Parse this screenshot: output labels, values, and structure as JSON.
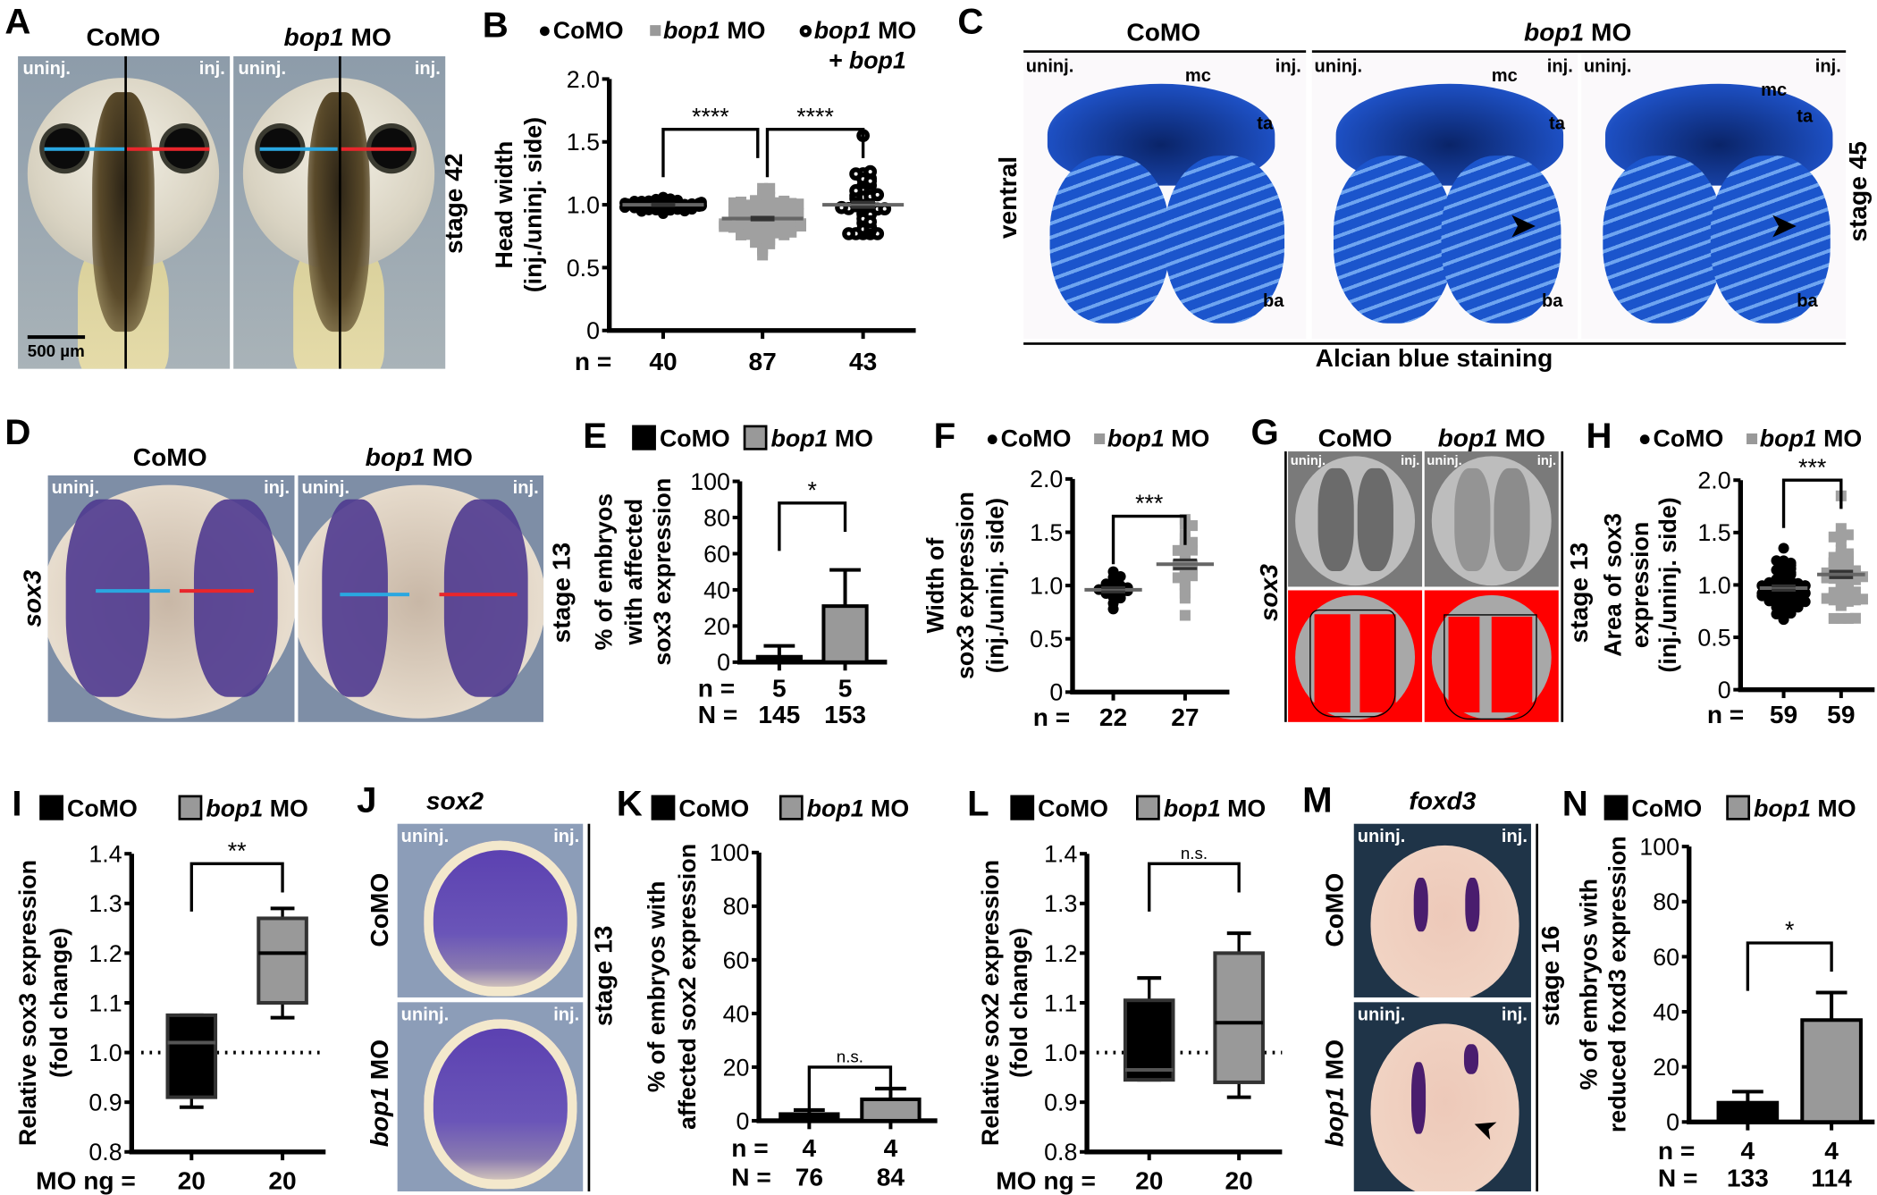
{
  "figure": {
    "A": {
      "letter": "A",
      "title_como": "CoMO",
      "title_bop1_italic": "bop1",
      "title_bop1_rest": " MO",
      "uninj": "uninj.",
      "inj": "inj.",
      "stage": "stage 42",
      "scale_bar": "500 µm",
      "colors": {
        "uninj_line": "#2aa7e0",
        "inj_line": "#e8262c"
      }
    },
    "C": {
      "letter": "C",
      "title_como": "CoMO",
      "title_bop1_italic": "bop1",
      "title_bop1_rest": " MO",
      "uninj": "uninj.",
      "inj": "inj.",
      "view": "ventral",
      "stage": "stage 45",
      "caption": "Alcian blue staining",
      "mc": "mc",
      "ta": "ta",
      "ba": "ba"
    },
    "D": {
      "letter": "D",
      "title_como": "CoMO",
      "title_bop1_italic": "bop1",
      "title_bop1_rest": " MO",
      "uninj": "uninj.",
      "inj": "inj.",
      "gene": "sox3",
      "stage": "stage 13"
    },
    "G": {
      "letter": "G",
      "title_como": "CoMO",
      "title_bop1_italic": "bop1",
      "title_bop1_rest": " MO",
      "uninj": "uninj.",
      "inj": "inj.",
      "gene": "sox3",
      "stage": "stage 13"
    },
    "J": {
      "letter": "J",
      "gene": "sox2",
      "row_como": "CoMO",
      "row_bop1_italic": "bop1",
      "row_bop1_rest": " MO",
      "uninj": "uninj.",
      "inj": "inj.",
      "stage": "stage 13"
    },
    "M": {
      "letter": "M",
      "gene": "foxd3",
      "row_como": "CoMO",
      "row_bop1_italic": "bop1",
      "row_bop1_rest": " MO",
      "uninj": "uninj.",
      "inj": "inj.",
      "stage": "stage 16"
    }
  },
  "chart_data": [
    {
      "letter": "B",
      "type": "scatter",
      "legend": [
        {
          "italic": "",
          "text": "CoMO",
          "marker": "circle"
        },
        {
          "italic": "bop1",
          "text": " MO",
          "marker": "square"
        },
        {
          "italic": "bop1",
          "text": " MO",
          "line2": "+ bop1",
          "marker": "ring"
        }
      ],
      "ylabel": [
        "Head width",
        "(inj./uninj. side)"
      ],
      "yticks": [
        "0",
        "0.5",
        "1.0",
        "1.5",
        "2.0"
      ],
      "ylim": [
        0,
        2
      ],
      "groups": [
        {
          "name": "CoMO",
          "n": 40,
          "mean": 1.0,
          "sem": 0.005,
          "min": 0.93,
          "max": 1.06,
          "marker": "circle"
        },
        {
          "name": "bop1 MO",
          "n": 87,
          "mean": 0.89,
          "sem": 0.01,
          "min": 0.6,
          "max": 1.13,
          "marker": "square"
        },
        {
          "name": "bop1 MO + bop1",
          "n": 43,
          "mean": 1.0,
          "sem": 0.02,
          "min": 0.77,
          "max": 1.55,
          "marker": "ring"
        }
      ],
      "counts": [
        {
          "label": "n =",
          "values": [
            "40",
            "87",
            "43"
          ]
        }
      ],
      "significance": [
        {
          "from": 0,
          "to": 1,
          "y": 1.6,
          "label": "****"
        },
        {
          "from": 1,
          "to": 2,
          "y": 1.6,
          "label": "****"
        }
      ]
    },
    {
      "letter": "E",
      "type": "bar",
      "legend": [
        {
          "italic": "",
          "text": "CoMO",
          "marker": "black-box"
        },
        {
          "italic": "bop1",
          "text": " MO",
          "marker": "grey-box"
        }
      ],
      "ylabel": [
        "% of embryos",
        "with affected",
        "sox3 expression"
      ],
      "yticks": [
        "0",
        "20",
        "40",
        "60",
        "80",
        "100"
      ],
      "ylim": [
        0,
        100
      ],
      "groups": [
        {
          "name": "CoMO",
          "value": 3,
          "error": 6
        },
        {
          "name": "bop1 MO",
          "value": 31,
          "error": 20
        }
      ],
      "counts": [
        {
          "label": "n =",
          "values": [
            "5",
            "5"
          ]
        },
        {
          "label": "N =",
          "values": [
            "145",
            "153"
          ]
        }
      ],
      "significance": [
        {
          "from": 0,
          "to": 1,
          "y": 88,
          "label": "*"
        }
      ]
    },
    {
      "letter": "F",
      "type": "scatter",
      "legend": [
        {
          "italic": "",
          "text": "CoMO",
          "marker": "circle"
        },
        {
          "italic": "bop1",
          "text": " MO",
          "marker": "square"
        }
      ],
      "ylabel": [
        "Width of",
        "sox3 expression",
        "(inj./uninj. side)"
      ],
      "yticks": [
        "0",
        "0.5",
        "1.0",
        "1.5",
        "2.0"
      ],
      "ylim": [
        0,
        2
      ],
      "groups": [
        {
          "name": "CoMO",
          "n": 22,
          "mean": 0.96,
          "sem": 0.02,
          "min": 0.78,
          "max": 1.13,
          "marker": "circle"
        },
        {
          "name": "bop1 MO",
          "n": 27,
          "mean": 1.2,
          "sem": 0.04,
          "min": 0.72,
          "max": 1.62,
          "marker": "square"
        }
      ],
      "counts": [
        {
          "label": "n =",
          "values": [
            "22",
            "27"
          ]
        }
      ],
      "significance": [
        {
          "from": 0,
          "to": 1,
          "y": 1.65,
          "label": "***"
        }
      ]
    },
    {
      "letter": "H",
      "type": "scatter",
      "legend": [
        {
          "italic": "",
          "text": "CoMO",
          "marker": "circle"
        },
        {
          "italic": "bop1",
          "text": " MO",
          "marker": "square"
        }
      ],
      "ylabel": [
        "Area of sox3",
        "expression",
        "(inj./uninj. side)"
      ],
      "yticks": [
        "0",
        "0.5",
        "1.0",
        "1.5",
        "2.0"
      ],
      "ylim": [
        0,
        2
      ],
      "groups": [
        {
          "name": "CoMO",
          "n": 59,
          "mean": 0.97,
          "sem": 0.02,
          "min": 0.67,
          "max": 1.35,
          "marker": "circle"
        },
        {
          "name": "bop1 MO",
          "n": 59,
          "mean": 1.1,
          "sem": 0.03,
          "min": 0.68,
          "max": 1.85,
          "marker": "square"
        }
      ],
      "counts": [
        {
          "label": "n =",
          "values": [
            "59",
            "59"
          ]
        }
      ],
      "significance": [
        {
          "from": 0,
          "to": 1,
          "y": 2.0,
          "label": "***"
        }
      ]
    },
    {
      "letter": "I",
      "type": "box",
      "legend": [
        {
          "italic": "",
          "text": "CoMO",
          "marker": "black-box"
        },
        {
          "italic": "bop1",
          "text": " MO",
          "marker": "grey-box"
        }
      ],
      "ylabel": [
        "Relative sox3 expression",
        "(fold change)"
      ],
      "yticks": [
        "0.8",
        "0.9",
        "1.0",
        "1.1",
        "1.2",
        "1.3",
        "1.4"
      ],
      "ylim": [
        0.8,
        1.4
      ],
      "reference_line": 1.0,
      "groups": [
        {
          "name": "CoMO",
          "min": 0.89,
          "q1": 0.91,
          "median": 1.02,
          "q3": 1.075,
          "max": 1.075
        },
        {
          "name": "bop1 MO",
          "min": 1.07,
          "q1": 1.1,
          "median": 1.2,
          "q3": 1.27,
          "max": 1.29
        }
      ],
      "counts": [
        {
          "label": "MO ng =",
          "values": [
            "20",
            "20"
          ]
        }
      ],
      "significance": [
        {
          "from": 0,
          "to": 1,
          "y": 1.38,
          "label": "**"
        }
      ]
    },
    {
      "letter": "K",
      "type": "bar",
      "legend": [
        {
          "italic": "",
          "text": "CoMO",
          "marker": "black-box"
        },
        {
          "italic": "bop1",
          "text": " MO",
          "marker": "grey-box"
        }
      ],
      "ylabel": [
        "% of embryos with",
        "affected sox2 expression"
      ],
      "yticks": [
        "0",
        "20",
        "40",
        "60",
        "80",
        "100"
      ],
      "ylim": [
        0,
        100
      ],
      "groups": [
        {
          "name": "CoMO",
          "value": 2.5,
          "error": 1.5
        },
        {
          "name": "bop1 MO",
          "value": 8,
          "error": 4
        }
      ],
      "counts": [
        {
          "label": "n =",
          "values": [
            "4",
            "4"
          ]
        },
        {
          "label": "N =",
          "values": [
            "76",
            "84"
          ]
        }
      ],
      "significance": [
        {
          "from": 0,
          "to": 1,
          "y": 20,
          "label": "n.s."
        }
      ]
    },
    {
      "letter": "L",
      "type": "box",
      "legend": [
        {
          "italic": "",
          "text": "CoMO",
          "marker": "black-box"
        },
        {
          "italic": "bop1",
          "text": " MO",
          "marker": "grey-box"
        }
      ],
      "ylabel": [
        "Relative sox2 expression",
        "(fold change)"
      ],
      "yticks": [
        "0.8",
        "0.9",
        "1.0",
        "1.1",
        "1.2",
        "1.3",
        "1.4"
      ],
      "ylim": [
        0.8,
        1.4
      ],
      "reference_line": 1.0,
      "groups": [
        {
          "name": "CoMO",
          "min": 0.945,
          "q1": 0.945,
          "median": 0.965,
          "q3": 1.105,
          "max": 1.15
        },
        {
          "name": "bop1 MO",
          "min": 0.91,
          "q1": 0.94,
          "median": 1.06,
          "q3": 1.2,
          "max": 1.24
        }
      ],
      "counts": [
        {
          "label": "MO ng =",
          "values": [
            "20",
            "20"
          ]
        }
      ],
      "significance": [
        {
          "from": 0,
          "to": 1,
          "y": 1.38,
          "label": "n.s."
        }
      ]
    },
    {
      "letter": "N",
      "type": "bar",
      "legend": [
        {
          "italic": "",
          "text": "CoMO",
          "marker": "black-box"
        },
        {
          "italic": "bop1",
          "text": " MO",
          "marker": "grey-box"
        }
      ],
      "ylabel": [
        "% of embryos with",
        "reduced foxd3 expression"
      ],
      "yticks": [
        "0",
        "20",
        "40",
        "60",
        "80",
        "100"
      ],
      "ylim": [
        0,
        100
      ],
      "groups": [
        {
          "name": "CoMO",
          "value": 7,
          "error": 4
        },
        {
          "name": "bop1 MO",
          "value": 37,
          "error": 10
        }
      ],
      "counts": [
        {
          "label": "n =",
          "values": [
            "4",
            "4"
          ]
        },
        {
          "label": "N =",
          "values": [
            "133",
            "114"
          ]
        }
      ],
      "significance": [
        {
          "from": 0,
          "to": 1,
          "y": 65,
          "label": "*"
        }
      ]
    }
  ]
}
